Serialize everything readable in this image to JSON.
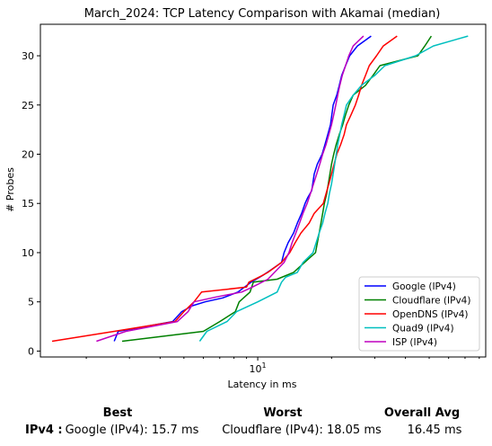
{
  "chart_data": {
    "type": "line",
    "title": "March_2024: TCP Latency Comparison with Akamai (median)",
    "xlabel": "Latency in ms",
    "ylabel": "# Probes",
    "xscale": "log",
    "xlim": [
      1.3,
      85
    ],
    "ylim": [
      -0.6,
      33.2
    ],
    "xticks": [
      {
        "value": 10,
        "label": "10",
        "sup": "1"
      }
    ],
    "yticks": [
      0,
      5,
      10,
      15,
      20,
      25,
      30
    ],
    "grid": false,
    "legend": "bottom-right",
    "series": [
      {
        "name": "Google (IPv4)",
        "color": "#0000ff",
        "points": [
          [
            2.6,
            1
          ],
          [
            2.7,
            2
          ],
          [
            4.5,
            3
          ],
          [
            4.9,
            4
          ],
          [
            5.4,
            4.6
          ],
          [
            6.1,
            5
          ],
          [
            7.2,
            5.4
          ],
          [
            8.3,
            6
          ],
          [
            9.4,
            7
          ],
          [
            10.5,
            7.7
          ],
          [
            11.4,
            8.3
          ],
          [
            12.5,
            9
          ],
          [
            12.8,
            10
          ],
          [
            13.3,
            11
          ],
          [
            14.0,
            12
          ],
          [
            14.5,
            13
          ],
          [
            15.1,
            14
          ],
          [
            15.6,
            15
          ],
          [
            16.0,
            15.6
          ],
          [
            16.6,
            16.3
          ],
          [
            17.0,
            18
          ],
          [
            17.5,
            19
          ],
          [
            18.3,
            20
          ],
          [
            18.8,
            21
          ],
          [
            19.3,
            22
          ],
          [
            19.8,
            23
          ],
          [
            20.3,
            25
          ],
          [
            21.0,
            26
          ],
          [
            21.5,
            27
          ],
          [
            22.0,
            28
          ],
          [
            22.8,
            29
          ],
          [
            23.7,
            30
          ],
          [
            25.5,
            31
          ],
          [
            29.0,
            32
          ]
        ]
      },
      {
        "name": "Cloudflare (IPv4)",
        "color": "#008000",
        "points": [
          [
            2.8,
            1
          ],
          [
            6.0,
            2
          ],
          [
            7.0,
            3
          ],
          [
            8.1,
            4
          ],
          [
            8.4,
            5
          ],
          [
            9.3,
            6
          ],
          [
            9.6,
            7
          ],
          [
            12.0,
            7.3
          ],
          [
            14.0,
            8
          ],
          [
            15.5,
            9
          ],
          [
            17.2,
            10
          ],
          [
            17.5,
            11
          ],
          [
            17.8,
            12
          ],
          [
            18.1,
            13
          ],
          [
            18.4,
            14
          ],
          [
            18.7,
            15
          ],
          [
            19.1,
            16
          ],
          [
            19.4,
            17
          ],
          [
            19.7,
            18
          ],
          [
            20.0,
            19
          ],
          [
            20.4,
            20
          ],
          [
            20.9,
            21
          ],
          [
            21.5,
            22
          ],
          [
            22.2,
            23
          ],
          [
            22.8,
            24
          ],
          [
            23.5,
            25
          ],
          [
            24.5,
            26
          ],
          [
            27.5,
            27
          ],
          [
            29.5,
            28
          ],
          [
            31.5,
            29
          ],
          [
            45.0,
            30
          ],
          [
            48.0,
            31
          ],
          [
            51.0,
            32
          ]
        ]
      },
      {
        "name": "OpenDNS (IPv4)",
        "color": "#ff0000",
        "points": [
          [
            1.45,
            1
          ],
          [
            2.6,
            2
          ],
          [
            4.6,
            3
          ],
          [
            5.0,
            4
          ],
          [
            5.5,
            5
          ],
          [
            5.9,
            6
          ],
          [
            9.0,
            6.5
          ],
          [
            9.2,
            7
          ],
          [
            10.3,
            7.6
          ],
          [
            11.0,
            8
          ],
          [
            12.5,
            9
          ],
          [
            13.5,
            10
          ],
          [
            14.2,
            11
          ],
          [
            15.0,
            12
          ],
          [
            16.2,
            13
          ],
          [
            17.0,
            14
          ],
          [
            18.5,
            15
          ],
          [
            19.0,
            16
          ],
          [
            19.5,
            17
          ],
          [
            20.0,
            18
          ],
          [
            20.5,
            19
          ],
          [
            21.0,
            20
          ],
          [
            21.8,
            21
          ],
          [
            22.5,
            22
          ],
          [
            23.0,
            23
          ],
          [
            24.0,
            24
          ],
          [
            25.0,
            25
          ],
          [
            25.8,
            26
          ],
          [
            26.5,
            27
          ],
          [
            27.5,
            28
          ],
          [
            28.5,
            29
          ],
          [
            30.5,
            30
          ],
          [
            32.5,
            31
          ],
          [
            37.0,
            32
          ]
        ]
      },
      {
        "name": "Quad9 (IPv4)",
        "color": "#00bfbf",
        "points": [
          [
            5.8,
            1
          ],
          [
            6.2,
            2
          ],
          [
            7.5,
            3
          ],
          [
            8.2,
            4
          ],
          [
            10.0,
            5
          ],
          [
            12.0,
            6
          ],
          [
            12.5,
            7
          ],
          [
            13.0,
            7.5
          ],
          [
            14.5,
            8
          ],
          [
            15.3,
            9
          ],
          [
            16.8,
            10
          ],
          [
            17.3,
            11
          ],
          [
            17.8,
            12
          ],
          [
            18.4,
            13
          ],
          [
            18.8,
            14
          ],
          [
            19.3,
            15
          ],
          [
            19.6,
            16
          ],
          [
            20.0,
            17
          ],
          [
            20.3,
            18
          ],
          [
            20.6,
            19
          ],
          [
            20.9,
            20
          ],
          [
            21.2,
            21
          ],
          [
            21.6,
            22
          ],
          [
            22.0,
            23
          ],
          [
            22.5,
            24
          ],
          [
            23.0,
            25
          ],
          [
            24.5,
            26
          ],
          [
            26.5,
            27
          ],
          [
            30.0,
            28
          ],
          [
            33.0,
            29
          ],
          [
            44.0,
            30
          ],
          [
            52.0,
            31
          ],
          [
            72.0,
            32
          ]
        ]
      },
      {
        "name": "ISP (IPv4)",
        "color": "#bf00bf",
        "points": [
          [
            2.2,
            1
          ],
          [
            2.9,
            2
          ],
          [
            4.7,
            3
          ],
          [
            5.2,
            4
          ],
          [
            5.5,
            5
          ],
          [
            6.8,
            5.5
          ],
          [
            8.6,
            6
          ],
          [
            9.5,
            6.5
          ],
          [
            11.0,
            7.3
          ],
          [
            12.8,
            9
          ],
          [
            13.4,
            10
          ],
          [
            13.8,
            11
          ],
          [
            14.3,
            12
          ],
          [
            14.8,
            13
          ],
          [
            15.3,
            14
          ],
          [
            15.9,
            15
          ],
          [
            16.4,
            16
          ],
          [
            16.9,
            17
          ],
          [
            17.4,
            18
          ],
          [
            17.9,
            19
          ],
          [
            18.4,
            20
          ],
          [
            19.0,
            21
          ],
          [
            19.5,
            22
          ],
          [
            20.0,
            23
          ],
          [
            20.4,
            24
          ],
          [
            20.8,
            25
          ],
          [
            21.2,
            26
          ],
          [
            21.6,
            27
          ],
          [
            22.1,
            28
          ],
          [
            22.8,
            29
          ],
          [
            23.5,
            30
          ],
          [
            24.5,
            31
          ],
          [
            27.0,
            32
          ]
        ]
      }
    ]
  },
  "summary": {
    "headers": {
      "best": "Best",
      "worst": "Worst",
      "avg": "Overall Avg"
    },
    "row_label": "IPv4 :",
    "best": "Google (IPv4): 15.7 ms",
    "worst": "Cloudflare (IPv4): 18.05 ms",
    "avg": "16.45 ms"
  }
}
